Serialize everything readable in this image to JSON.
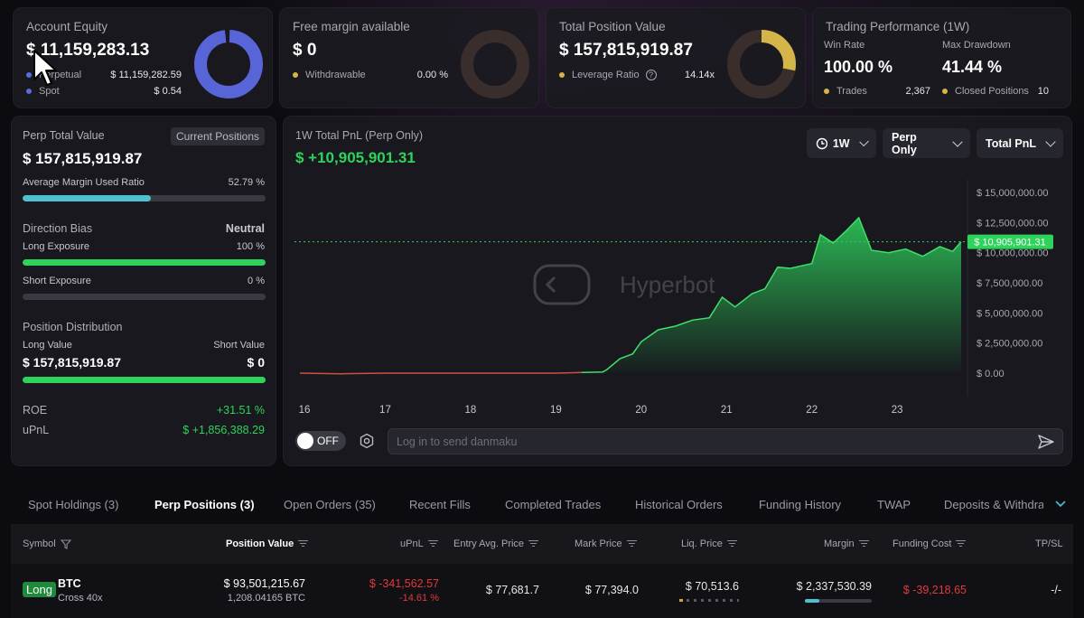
{
  "account_equity": {
    "title": "Account Equity",
    "value": "$ 11,159,283.13",
    "rows": [
      {
        "label": "Perpetual",
        "value": "$ 11,159,282.59",
        "color": "#5c6bd6"
      },
      {
        "label": "Spot",
        "value": "$ 0.54",
        "color": "#5c6bd6"
      }
    ],
    "donut_color": "#5865d8"
  },
  "free_margin": {
    "title": "Free margin available",
    "value": "$ 0",
    "rows": [
      {
        "label": "Withdrawable",
        "value": "0.00 %",
        "color": "#d4b54a"
      }
    ]
  },
  "total_position": {
    "title": "Total Position Value",
    "value": "$ 157,815,919.87",
    "rows": [
      {
        "label": "Leverage Ratio",
        "value": "14.14x",
        "color": "#d4b54a"
      }
    ],
    "donut_fill_fraction": 0.28,
    "donut_color": "#d4b54a"
  },
  "trading_performance": {
    "title": "Trading Performance (1W)",
    "win_rate_label": "Win Rate",
    "win_rate": "100.00 %",
    "max_drawdown_label": "Max Drawdown",
    "max_drawdown": "41.44 %",
    "trades_label": "Trades",
    "trades": "2,367",
    "closed_label": "Closed Positions",
    "closed": "10"
  },
  "perp_panel": {
    "title": "Perp Total Value",
    "current_positions_btn": "Current Positions",
    "value": "$ 157,815,919.87",
    "avg_margin_label": "Average Margin Used Ratio",
    "avg_margin_value": "52.79 %",
    "avg_margin_fraction": 0.5279,
    "direction_label": "Direction Bias",
    "direction_value": "Neutral",
    "long_exposure_label": "Long Exposure",
    "long_exposure_value": "100 %",
    "long_exposure_fraction": 1.0,
    "short_exposure_label": "Short Exposure",
    "short_exposure_value": "0 %",
    "short_exposure_fraction": 0.0,
    "distribution_label": "Position Distribution",
    "long_value_label": "Long Value",
    "long_value": "$ 157,815,919.87",
    "short_value_label": "Short Value",
    "short_value": "$ 0",
    "roe_label": "ROE",
    "roe_value": "+31.51 %",
    "upnl_label": "uPnL",
    "upnl_value": "$ +1,856,388.29"
  },
  "pnl_chart_panel": {
    "title": "1W Total PnL (Perp Only)",
    "value": "$ +10,905,901.31",
    "range_dropdown": "1W",
    "scope_dropdown": "Perp Only",
    "metric_dropdown": "Total PnL",
    "watermark": "Hyperbot",
    "toggle_label": "OFF",
    "danmaku_placeholder": "Log in to send danmaku"
  },
  "chart_data": {
    "type": "area",
    "x_ticks": [
      "16",
      "17",
      "18",
      "19",
      "20",
      "21",
      "22",
      "23"
    ],
    "y_ticks": [
      "$ 15,000,000.00",
      "$ 12,500,000.00",
      "$ 10,000,000.00",
      "$ 7,500,000.00",
      "$ 5,000,000.00",
      "$ 2,500,000.00",
      "$ 0.00"
    ],
    "ylim": [
      0,
      15000000
    ],
    "current_label": "$ 10,905,901.31",
    "current_value": 10905901.31,
    "x": [
      16.0,
      16.5,
      17.0,
      17.5,
      18.0,
      18.5,
      19.0,
      19.3,
      19.55,
      19.6,
      19.75,
      19.9,
      20.0,
      20.2,
      20.4,
      20.6,
      20.8,
      20.95,
      21.1,
      21.3,
      21.45,
      21.6,
      21.75,
      22.0,
      22.1,
      22.25,
      22.4,
      22.55,
      22.7,
      22.9,
      23.1,
      23.3,
      23.5,
      23.65,
      23.75
    ],
    "values": [
      0,
      -50000,
      0,
      0,
      0,
      0,
      0,
      50000,
      100000,
      300000,
      1200000,
      1600000,
      2600000,
      3600000,
      3900000,
      4400000,
      4600000,
      6300000,
      5500000,
      6600000,
      7000000,
      8800000,
      8700000,
      9100000,
      11500000,
      10800000,
      11800000,
      12900000,
      10200000,
      10000000,
      10300000,
      9700000,
      10500000,
      10100000,
      10905901
    ]
  },
  "tabs": [
    "Spot Holdings (3)",
    "Perp Positions (3)",
    "Open Orders (35)",
    "Recent Fills",
    "Completed Trades",
    "Historical Orders",
    "Funding History",
    "TWAP",
    "Deposits & Withdra"
  ],
  "table": {
    "headers": [
      "Symbol",
      "Position Value",
      "uPnL",
      "Entry Avg. Price",
      "Mark Price",
      "Liq. Price",
      "Margin",
      "Funding Cost",
      "TP/SL"
    ],
    "rows": [
      {
        "side": "Long",
        "symbol": "BTC",
        "mode": "Cross 40x",
        "position_value": "$ 93,501,215.67",
        "position_size": "1,208.04165 BTC",
        "upnl": "$ -341,562.57",
        "upnl_pct": "-14.61 %",
        "entry_price": "$ 77,681.7",
        "mark_price": "$ 77,394.0",
        "liq_price": "$ 70,513.6",
        "margin": "$ 2,337,530.39",
        "funding_cost": "$ -39,218.65",
        "tpsl": "-/-"
      }
    ]
  }
}
